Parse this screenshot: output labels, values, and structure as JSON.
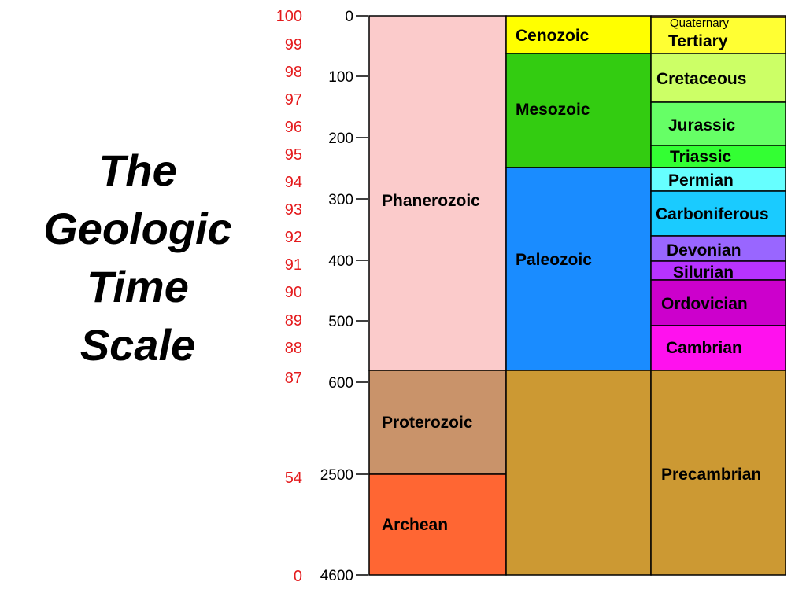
{
  "title_lines": [
    "The",
    "Geologic",
    "Time",
    "Scale"
  ],
  "percent_labels": [
    "100",
    "99",
    "98",
    "97",
    "96",
    "95",
    "94",
    "93",
    "92",
    "91",
    "90",
    "89",
    "88",
    "87",
    "54",
    "0"
  ],
  "age_labels": [
    "0",
    "100",
    "200",
    "300",
    "400",
    "500",
    "600",
    "2500",
    "4600"
  ],
  "eons": [
    {
      "name": "Phanerozoic",
      "color": "#fbcbcb"
    },
    {
      "name": "Proterozoic",
      "color": "#c9936a"
    },
    {
      "name": "Archean",
      "color": "#ff6633"
    }
  ],
  "eras": [
    {
      "name": "Cenozoic",
      "color": "#ffff00"
    },
    {
      "name": "Mesozoic",
      "color": "#33cc11"
    },
    {
      "name": "Paleozoic",
      "color": "#1a8cff"
    },
    {
      "name": "",
      "color": "#cc9933"
    }
  ],
  "periods": [
    {
      "name": "Quaternary",
      "color": "#ff8c66"
    },
    {
      "name": "Tertiary",
      "color": "#ffff33"
    },
    {
      "name": "Cretaceous",
      "color": "#ccff66"
    },
    {
      "name": "Jurassic",
      "color": "#66ff66"
    },
    {
      "name": "Triassic",
      "color": "#33ff33"
    },
    {
      "name": "Permian",
      "color": "#66ffff"
    },
    {
      "name": "Carboniferous",
      "color": "#1acbff"
    },
    {
      "name": "Devonian",
      "color": "#9966ff"
    },
    {
      "name": "Silurian",
      "color": "#b833ff"
    },
    {
      "name": "Ordovician",
      "color": "#cc00cc"
    },
    {
      "name": "Cambrian",
      "color": "#ff11ee"
    },
    {
      "name": "Precambrian",
      "color": "#cc9933"
    }
  ]
}
